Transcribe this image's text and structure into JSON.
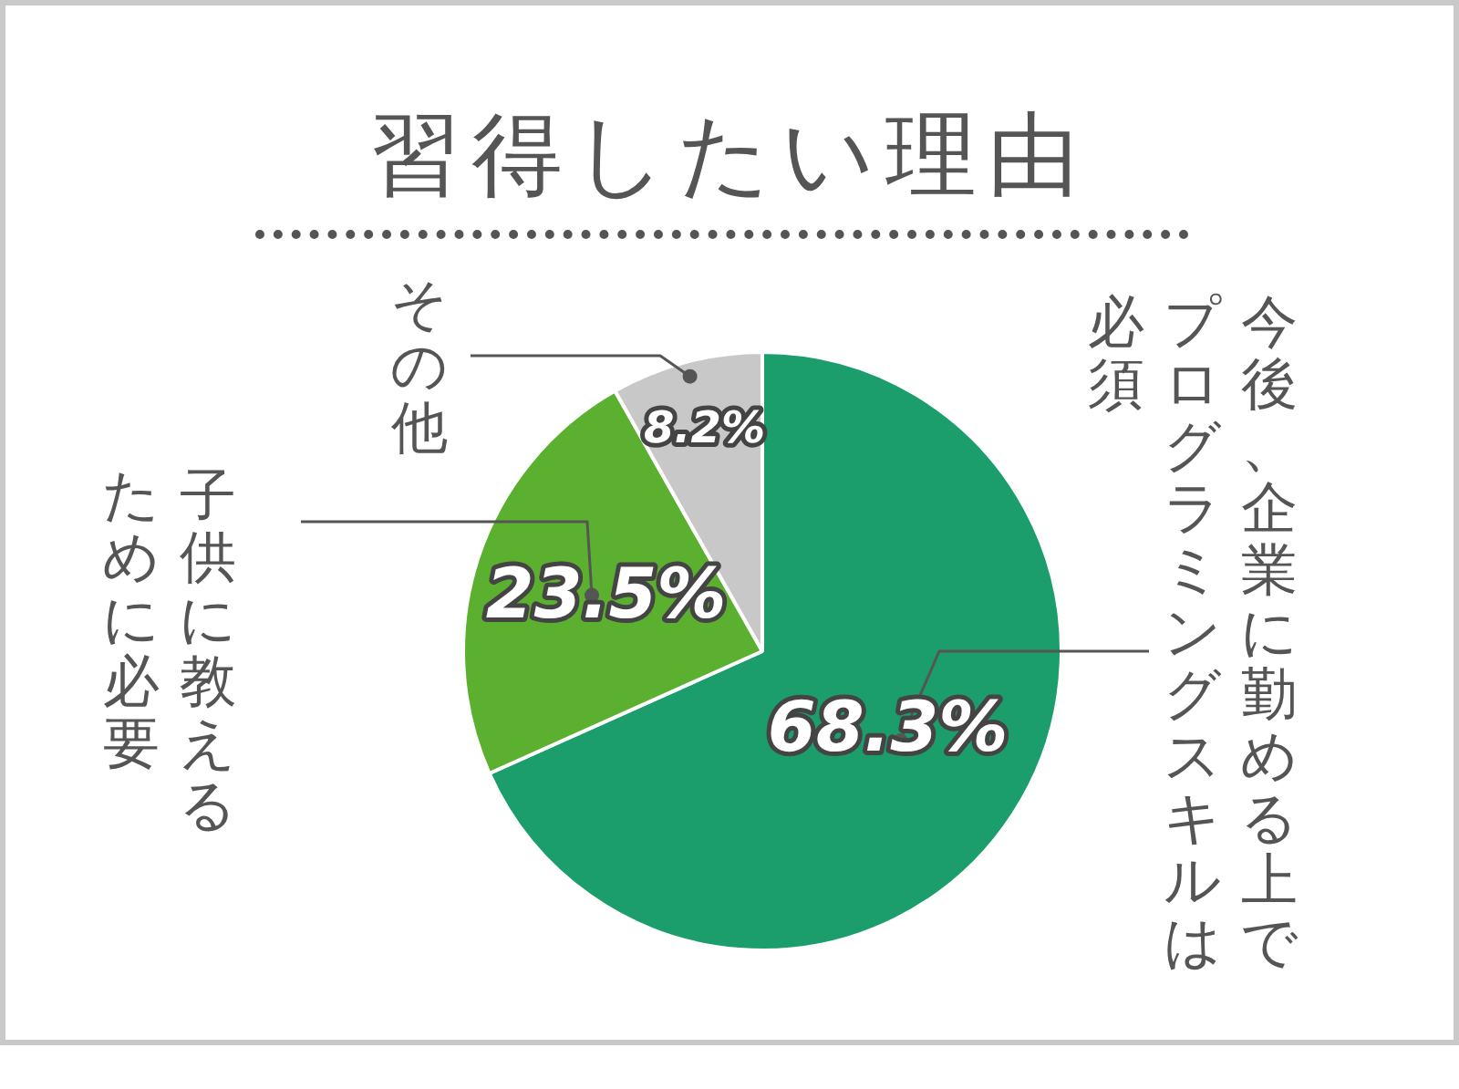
{
  "chart_data": {
    "type": "pie",
    "title": "習得したい理由",
    "categories": [
      "今後、企業に勤める上でプログラミングスキルは必須",
      "子供に教えるために必要",
      "その他"
    ],
    "values": [
      68.3,
      23.5,
      8.2
    ],
    "colors": [
      "#1b9e6b",
      "#5cb030",
      "#c8c8c8"
    ],
    "value_labels": [
      "68.3%",
      "23.5%",
      "8.2%"
    ],
    "data_labels": false,
    "legend": false
  }
}
